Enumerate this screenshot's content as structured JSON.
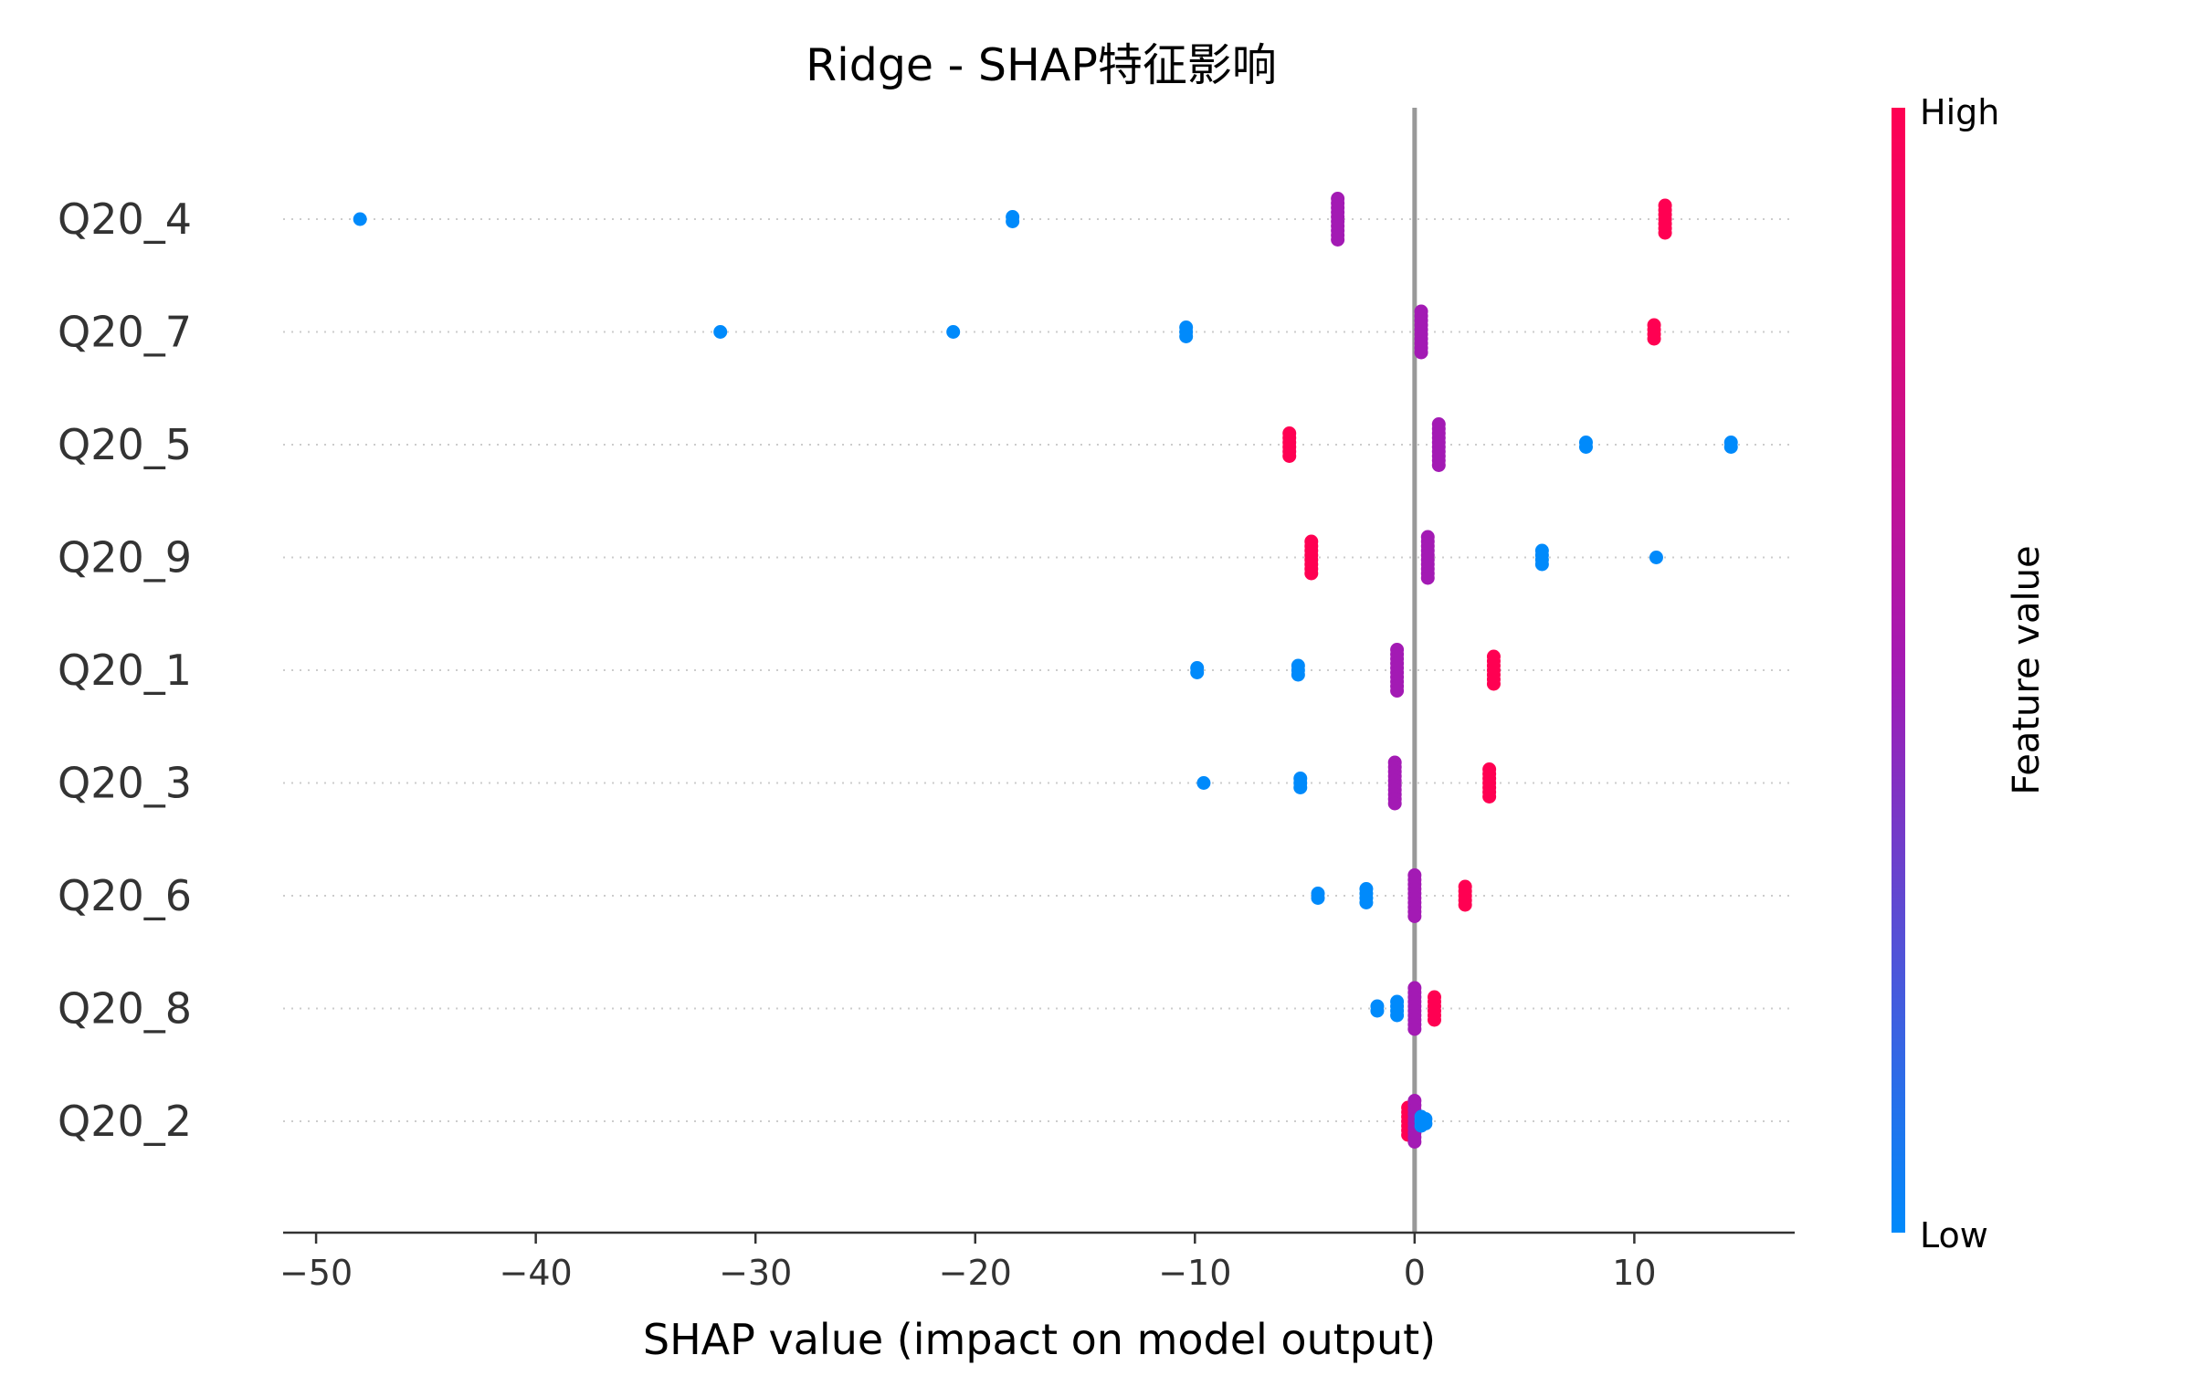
{
  "chart_data": {
    "type": "scatter",
    "subtype": "shap-beeswarm",
    "title": "Ridge - SHAP特征影响",
    "xlabel": "SHAP value (impact on model output)",
    "xlim": [
      -51.5,
      17.3
    ],
    "xticks": [
      -50,
      -40,
      -30,
      -20,
      -10,
      0,
      10
    ],
    "xtick_labels": [
      "−50",
      "−40",
      "−30",
      "−20",
      "−10",
      "0",
      "10"
    ],
    "zero_line": 0,
    "grid": "horizontal dotted guide per feature",
    "colorbar": {
      "label": "Feature value",
      "high_label": "High",
      "low_label": "Low",
      "high_color": "#ff0052",
      "mid_color": "#a31ab4",
      "low_color": "#008afb",
      "placement": "right"
    },
    "features": [
      {
        "name": "Q20_4",
        "points": [
          {
            "x": -48.0,
            "v": 0.0,
            "n": 1
          },
          {
            "x": -18.3,
            "v": 0.0,
            "n": 2
          },
          {
            "x": -3.5,
            "v": 0.5,
            "n": 10
          },
          {
            "x": 11.4,
            "v": 1.0,
            "n": 7
          }
        ]
      },
      {
        "name": "Q20_7",
        "points": [
          {
            "x": -31.6,
            "v": 0.0,
            "n": 1
          },
          {
            "x": -21.0,
            "v": 0.0,
            "n": 1
          },
          {
            "x": -10.4,
            "v": 0.0,
            "n": 3
          },
          {
            "x": 0.3,
            "v": 0.5,
            "n": 10
          },
          {
            "x": 10.9,
            "v": 1.0,
            "n": 4
          }
        ]
      },
      {
        "name": "Q20_5",
        "points": [
          {
            "x": -5.7,
            "v": 1.0,
            "n": 6
          },
          {
            "x": 1.1,
            "v": 0.5,
            "n": 10
          },
          {
            "x": 7.8,
            "v": 0.0,
            "n": 2
          },
          {
            "x": 14.4,
            "v": 0.0,
            "n": 2
          }
        ]
      },
      {
        "name": "Q20_9",
        "points": [
          {
            "x": -4.7,
            "v": 1.0,
            "n": 8
          },
          {
            "x": 0.6,
            "v": 0.5,
            "n": 10
          },
          {
            "x": 5.8,
            "v": 0.0,
            "n": 4
          },
          {
            "x": 11.0,
            "v": 0.0,
            "n": 1
          }
        ]
      },
      {
        "name": "Q20_1",
        "points": [
          {
            "x": -9.9,
            "v": 0.0,
            "n": 2
          },
          {
            "x": -5.3,
            "v": 0.0,
            "n": 3
          },
          {
            "x": -0.8,
            "v": 0.5,
            "n": 10
          },
          {
            "x": 3.6,
            "v": 1.0,
            "n": 7
          }
        ]
      },
      {
        "name": "Q20_3",
        "points": [
          {
            "x": -9.6,
            "v": 0.0,
            "n": 1
          },
          {
            "x": -5.2,
            "v": 0.0,
            "n": 3
          },
          {
            "x": -0.9,
            "v": 0.5,
            "n": 10
          },
          {
            "x": 3.4,
            "v": 1.0,
            "n": 7
          }
        ]
      },
      {
        "name": "Q20_6",
        "points": [
          {
            "x": -4.4,
            "v": 0.0,
            "n": 2
          },
          {
            "x": -2.2,
            "v": 0.0,
            "n": 4
          },
          {
            "x": 0.0,
            "v": 0.5,
            "n": 10
          },
          {
            "x": 2.3,
            "v": 1.0,
            "n": 5
          }
        ]
      },
      {
        "name": "Q20_8",
        "points": [
          {
            "x": -1.7,
            "v": 0.0,
            "n": 2
          },
          {
            "x": -0.8,
            "v": 0.0,
            "n": 4
          },
          {
            "x": 0.0,
            "v": 0.5,
            "n": 10
          },
          {
            "x": 0.9,
            "v": 1.0,
            "n": 6
          }
        ]
      },
      {
        "name": "Q20_2",
        "points": [
          {
            "x": -0.3,
            "v": 1.0,
            "n": 7
          },
          {
            "x": 0.0,
            "v": 0.5,
            "n": 10
          },
          {
            "x": 0.3,
            "v": 0.0,
            "n": 3
          },
          {
            "x": 0.5,
            "v": 0.0,
            "n": 2
          }
        ]
      }
    ]
  }
}
